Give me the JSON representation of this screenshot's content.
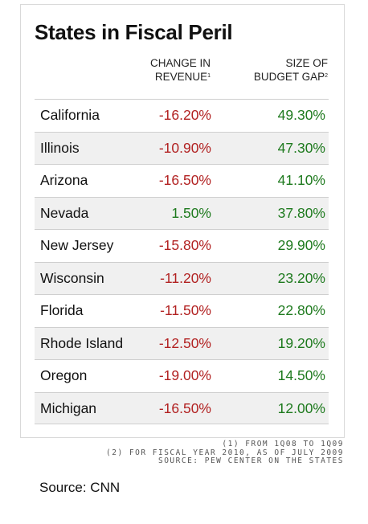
{
  "title": "States in Fiscal Peril",
  "columns": {
    "change": {
      "line1": "CHANGE IN",
      "line2": "REVENUE",
      "note": "1"
    },
    "gap": {
      "line1": "SIZE OF",
      "line2": "BUDGET GAP",
      "note": "2"
    }
  },
  "colors": {
    "negative": "#b22222",
    "positive": "#1e7a1e"
  },
  "chart_data": {
    "type": "table",
    "title": "States in Fiscal Peril",
    "columns": [
      "",
      "CHANGE IN REVENUE¹",
      "SIZE OF BUDGET GAP²"
    ],
    "rows": [
      {
        "state": "California",
        "change": "-16.20%",
        "gap": "49.30%"
      },
      {
        "state": "Illinois",
        "change": "-10.90%",
        "gap": "47.30%"
      },
      {
        "state": "Arizona",
        "change": "-16.50%",
        "gap": "41.10%"
      },
      {
        "state": "Nevada",
        "change": "1.50%",
        "gap": "37.80%"
      },
      {
        "state": "New Jersey",
        "change": "-15.80%",
        "gap": "29.90%"
      },
      {
        "state": "Wisconsin",
        "change": "-11.20%",
        "gap": "23.20%"
      },
      {
        "state": "Florida",
        "change": "-11.50%",
        "gap": "22.80%"
      },
      {
        "state": "Rhode Island",
        "change": "-12.50%",
        "gap": "19.20%"
      },
      {
        "state": "Oregon",
        "change": "-19.00%",
        "gap": "14.50%"
      },
      {
        "state": "Michigan",
        "change": "-16.50%",
        "gap": "12.00%"
      }
    ]
  },
  "footnotes": [
    "(1) FROM 1Q08 TO 1Q09",
    "(2) FOR FISCAL YEAR 2010, AS OF JULY 2009",
    "SOURCE: PEW CENTER ON THE STATES"
  ],
  "source": "Source: CNN"
}
